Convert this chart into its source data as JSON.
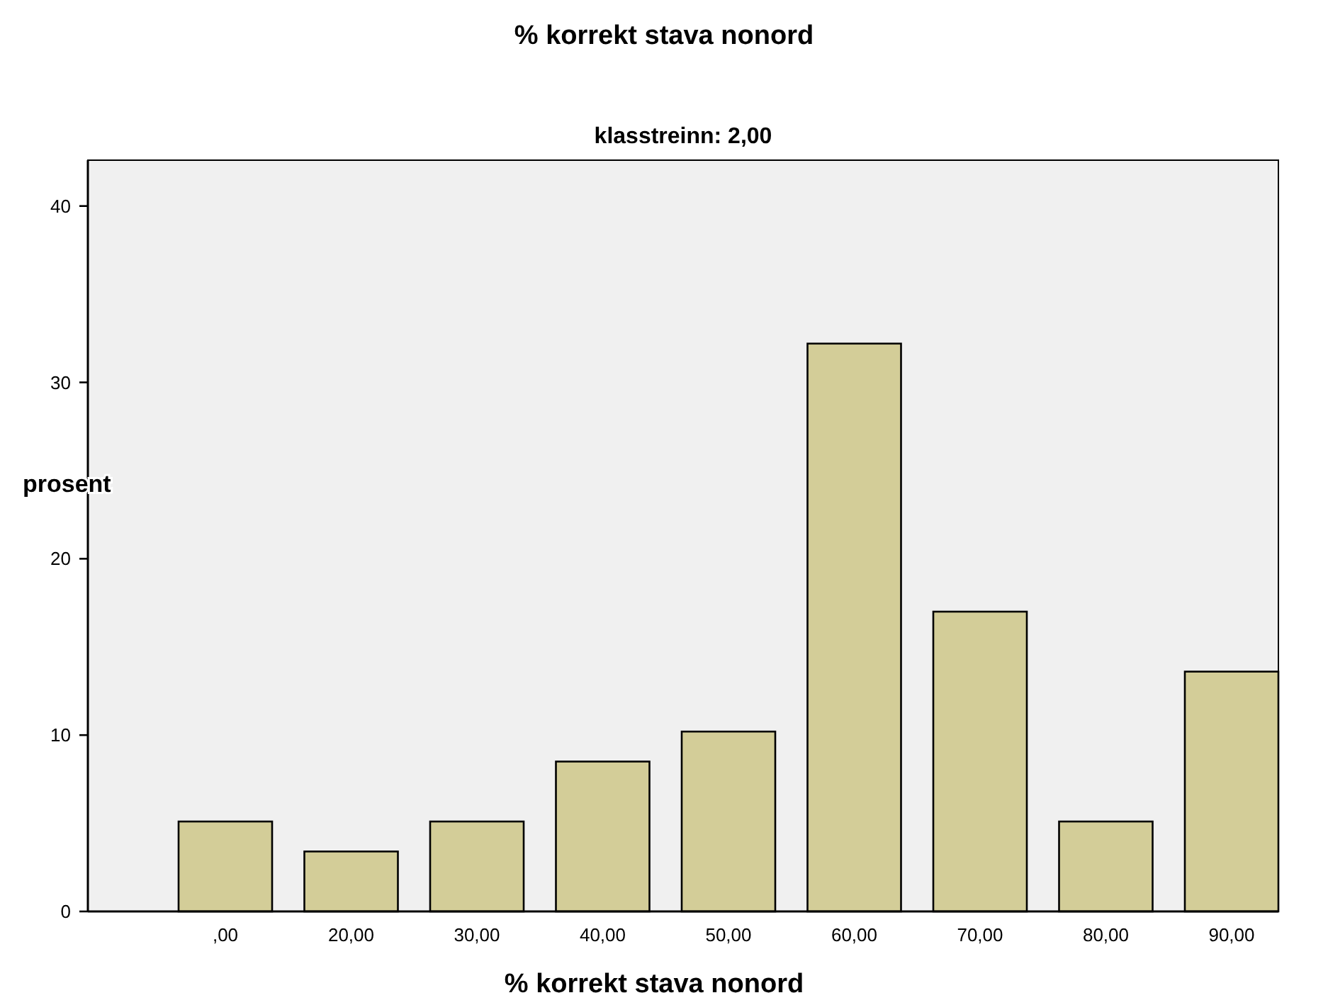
{
  "chart_data": {
    "type": "bar",
    "title": "% korrekt stava nonord",
    "subtitle": "klasstreinn: 2,00",
    "xlabel": "% korrekt stava nonord",
    "ylabel": "prosent",
    "categories": [
      ",00",
      "20,00",
      "30,00",
      "40,00",
      "50,00",
      "60,00",
      "70,00",
      "80,00",
      "90,00"
    ],
    "values": [
      5.1,
      3.4,
      5.1,
      8.5,
      10.2,
      32.2,
      17.0,
      5.1,
      13.6
    ],
    "color": "#d3cd98",
    "ylim": [
      0,
      42.6
    ],
    "yticks": [
      0,
      10,
      20,
      30,
      40
    ],
    "grid": false
  }
}
